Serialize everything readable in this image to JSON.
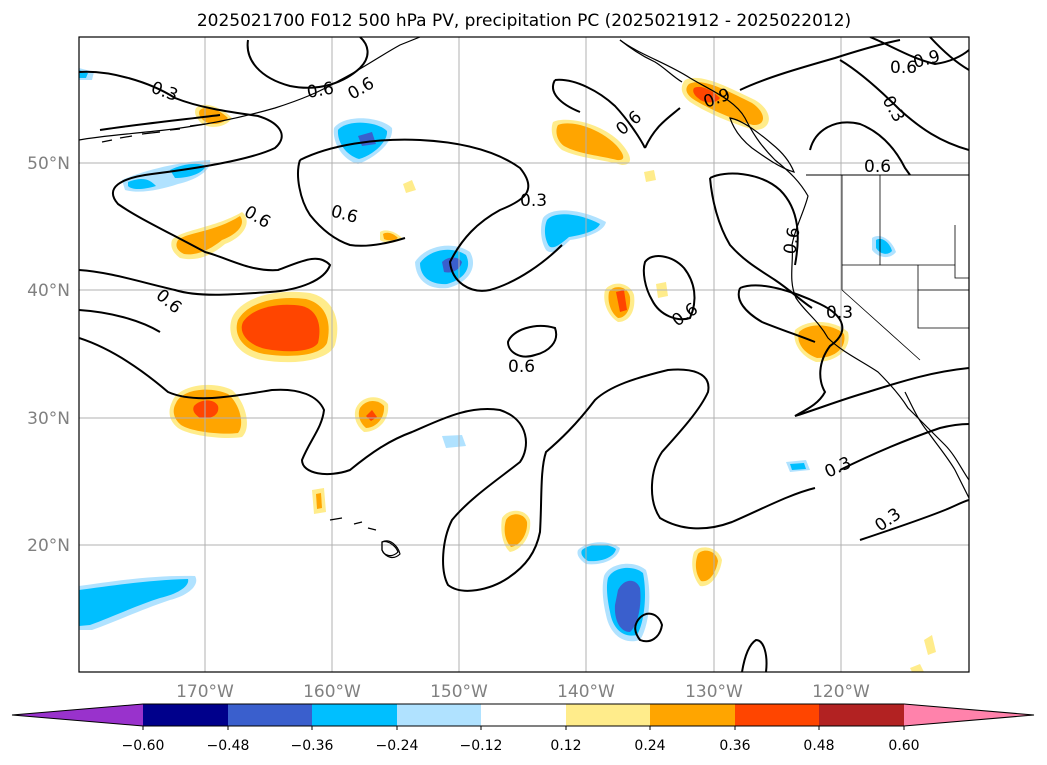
{
  "title": "2025021700 F012 500 hPa PV, precipitation PC (2025021912 - 2025022012)",
  "lat_labels": [
    "20°N",
    "30°N",
    "40°N",
    "50°N"
  ],
  "lon_labels": [
    "170°W",
    "160°W",
    "150°W",
    "140°W",
    "130°W",
    "120°W"
  ],
  "colorbar": {
    "ticks": [
      "−0.60",
      "−0.48",
      "−0.36",
      "−0.24",
      "−0.12",
      "0.12",
      "0.24",
      "0.36",
      "0.48",
      "0.60"
    ],
    "colors": [
      "#9932cc",
      "#00008b",
      "#3a5fcd",
      "#00bfff",
      "#b0e2ff",
      "#ffffff",
      "#ffec8b",
      "#ffa500",
      "#ff4500",
      "#b22222",
      "#ff82ab"
    ]
  },
  "contour_labels": [
    "0.3",
    "0.6",
    "0.6",
    "0.6",
    "0.6",
    "0.3",
    "0.6",
    "0.6",
    "0.6",
    "0.3",
    "0.3",
    "0.3",
    "0.6",
    "0.6",
    "0.9",
    "0.3",
    "0.6",
    "0.9",
    "0.6"
  ],
  "colors": {
    "grid": "#b0b0b0",
    "contour": "#000000",
    "coast": "#000000"
  }
}
